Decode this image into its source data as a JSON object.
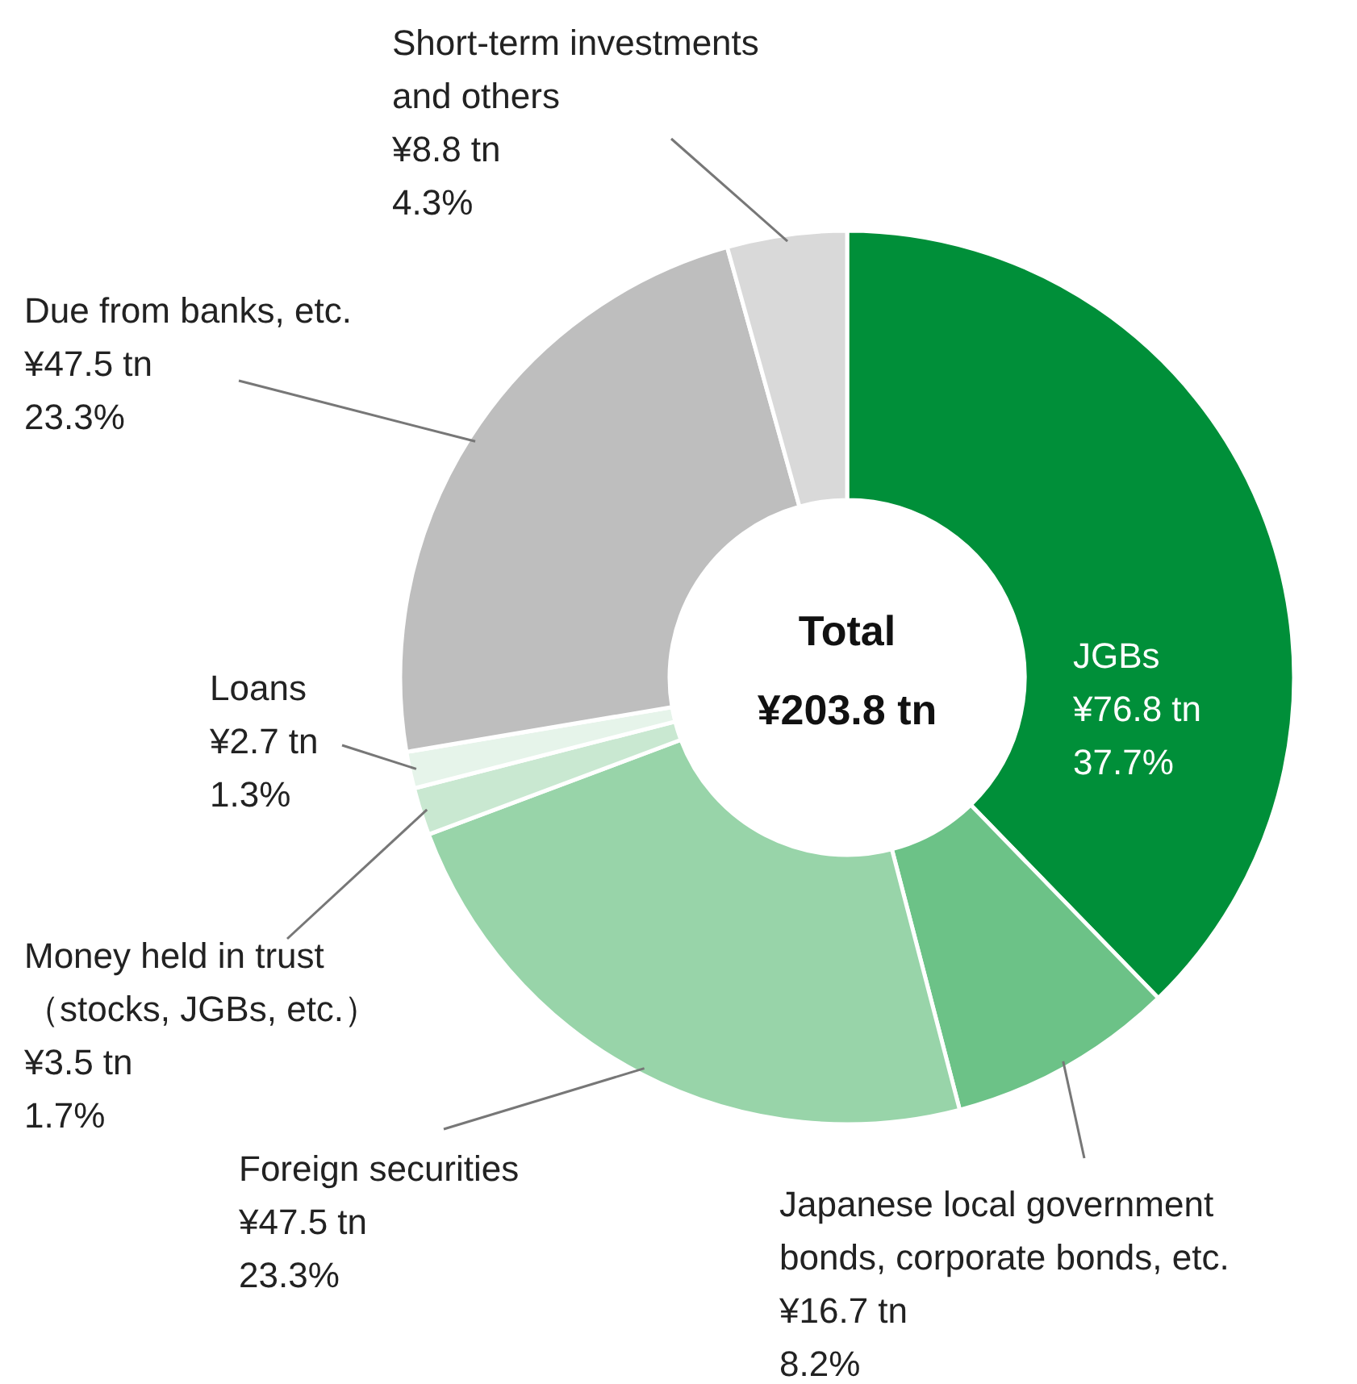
{
  "chart_data": {
    "type": "donut",
    "title": "Total",
    "subtitle": "¥203.8 tn",
    "categories": [
      "JGBs",
      "Japanese local government\nbonds, corporate bonds, etc.",
      "Foreign securities",
      "Money held in trust\n（stocks, JGBs, etc.）",
      "Loans",
      "Due from banks, etc.",
      "Short-term investments\nand others"
    ],
    "values": [
      76.8,
      16.7,
      47.5,
      3.5,
      2.7,
      47.5,
      8.8
    ],
    "value_labels": [
      "¥76.8 tn\n37.7%",
      "¥16.7 tn\n8.2%",
      "¥47.5 tn\n23.3%",
      "¥3.5 tn\n1.7%",
      "¥2.7 tn\n1.3%",
      "¥47.5 tn\n23.3%",
      "¥8.8 tn\n4.3%"
    ],
    "colors": [
      "#008f39",
      "#6cc287",
      "#98d4a9",
      "#c9e8d1",
      "#e6f4ea",
      "#bebebe",
      "#d9d9d9"
    ]
  }
}
